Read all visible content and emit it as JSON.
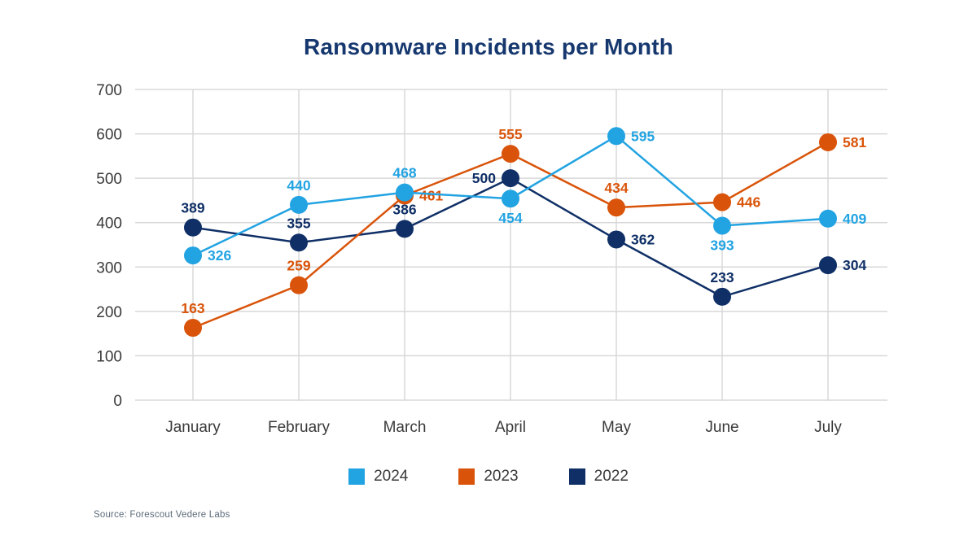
{
  "title": "Ransomware Incidents per Month",
  "source": "Source: Forescout Vedere Labs",
  "colors": {
    "title_text": "#16386F",
    "grid": "#D8D8D8",
    "axis_text": "#3A3A3A",
    "source_text": "#5C6B7A",
    "background": "#FFFFFF"
  },
  "legend": [
    {
      "label": "2024",
      "color": "#22A3E2"
    },
    {
      "label": "2023",
      "color": "#D9540A"
    },
    {
      "label": "2022",
      "color": "#0F2F66"
    }
  ],
  "chart_data": {
    "type": "line",
    "title": "Ransomware Incidents per Month",
    "xlabel": "",
    "ylabel": "",
    "categories": [
      "January",
      "February",
      "March",
      "April",
      "May",
      "June",
      "July"
    ],
    "yticks": [
      0,
      100,
      200,
      300,
      400,
      500,
      600,
      700
    ],
    "ylim": [
      0,
      700
    ],
    "grid": true,
    "legend_position": "bottom",
    "marker": "circle",
    "series": [
      {
        "name": "2022",
        "color": "#0F2F66",
        "values": [
          389,
          355,
          386,
          500,
          362,
          233,
          304
        ],
        "label_pos": [
          "top",
          "top",
          "top",
          "left",
          "right",
          "top",
          "right"
        ]
      },
      {
        "name": "2023",
        "color": "#D9540A",
        "values": [
          163,
          259,
          461,
          555,
          434,
          446,
          581
        ],
        "label_pos": [
          "top",
          "top",
          "right",
          "top",
          "top",
          "right",
          "right"
        ]
      },
      {
        "name": "2024",
        "color": "#22A3E2",
        "values": [
          326,
          440,
          468,
          454,
          595,
          393,
          409
        ],
        "label_pos": [
          "right",
          "top",
          "top",
          "bottom",
          "right",
          "bottom",
          "right"
        ]
      }
    ]
  }
}
